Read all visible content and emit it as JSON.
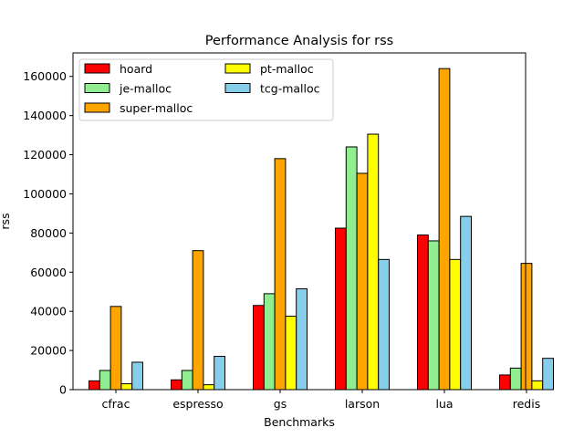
{
  "chart_data": {
    "type": "bar",
    "title": "Performance Analysis for rss",
    "xlabel": "Benchmarks",
    "ylabel": "rss",
    "ylim": [
      0,
      172000
    ],
    "yticks": [
      0,
      20000,
      40000,
      60000,
      80000,
      100000,
      120000,
      140000,
      160000
    ],
    "grid": false,
    "legend_position": "top-left",
    "legend_columns": 2,
    "categories": [
      "cfrac",
      "espresso",
      "gs",
      "larson",
      "lua",
      "redis"
    ],
    "series": [
      {
        "name": "hoard",
        "color": "#ff0000",
        "values": [
          4500,
          5000,
          43000,
          82500,
          79000,
          7500
        ]
      },
      {
        "name": "je-malloc",
        "color": "#90ee90",
        "values": [
          9800,
          9800,
          49000,
          124000,
          76000,
          11000
        ]
      },
      {
        "name": "super-malloc",
        "color": "#ffa500",
        "values": [
          42500,
          71000,
          118000,
          110500,
          164000,
          64500
        ]
      },
      {
        "name": "pt-malloc",
        "color": "#ffff00",
        "values": [
          3000,
          2500,
          37500,
          130500,
          66500,
          4500
        ]
      },
      {
        "name": "tcg-malloc",
        "color": "#87ceeb",
        "values": [
          14000,
          17000,
          51500,
          66500,
          88500,
          16000
        ]
      }
    ]
  }
}
